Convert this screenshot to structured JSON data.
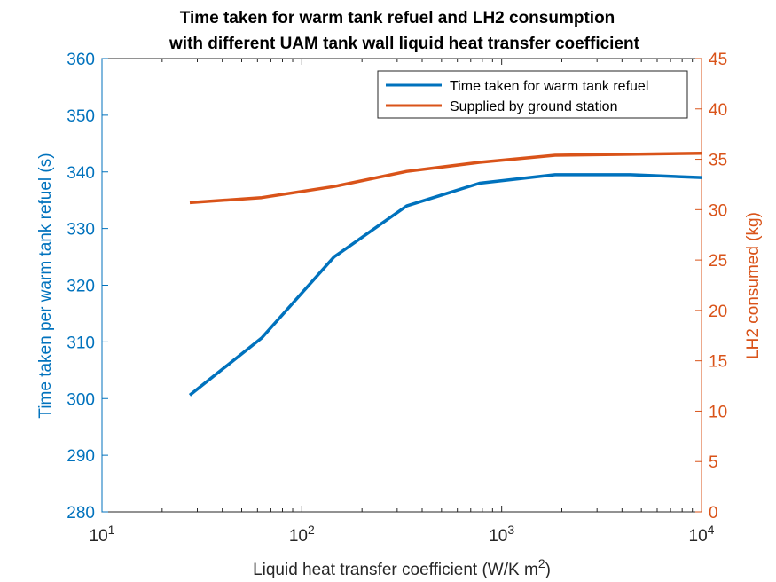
{
  "chart_data": {
    "type": "line",
    "title_line1": "Time taken for warm tank refuel and LH2 consumption",
    "title_line2": "with different UAM tank wall liquid heat transfer coefficient",
    "xlabel_main": "Liquid heat transfer coefficient (W/K m",
    "xlabel_sup": "2",
    "xlabel_end": ")",
    "xscale": "log",
    "xlim": [
      10,
      10000
    ],
    "x_ticks": [
      {
        "value": 10,
        "base": "10",
        "exp": "1"
      },
      {
        "value": 100,
        "base": "10",
        "exp": "2"
      },
      {
        "value": 1000,
        "base": "10",
        "exp": "3"
      },
      {
        "value": 10000,
        "base": "10",
        "exp": "4"
      }
    ],
    "y_left": {
      "label": "Time taken per warm tank refuel (s)",
      "lim": [
        280,
        360
      ],
      "ticks": [
        "280",
        "290",
        "300",
        "310",
        "320",
        "330",
        "340",
        "350",
        "360"
      ],
      "color": "#0072BD"
    },
    "y_right": {
      "label": "LH2 consumed (kg)",
      "lim": [
        0,
        45
      ],
      "ticks": [
        "0",
        "5",
        "10",
        "15",
        "20",
        "25",
        "30",
        "35",
        "40",
        "45"
      ],
      "color": "#D95319"
    },
    "x": [
      27.5,
      63,
      145,
      335,
      775,
      1850,
      4400,
      10000
    ],
    "series": [
      {
        "name": "Time taken for warm tank refuel",
        "axis": "left",
        "color": "#0072BD",
        "values": [
          300.6,
          310.7,
          325.0,
          334.0,
          338.0,
          339.5,
          339.5,
          339.0
        ]
      },
      {
        "name": "Supplied by ground station",
        "axis": "right",
        "color": "#D95319",
        "values": [
          30.7,
          31.2,
          32.3,
          33.8,
          34.7,
          35.4,
          35.5,
          35.6
        ]
      }
    ],
    "legend_position": "top-right",
    "grid": false
  }
}
